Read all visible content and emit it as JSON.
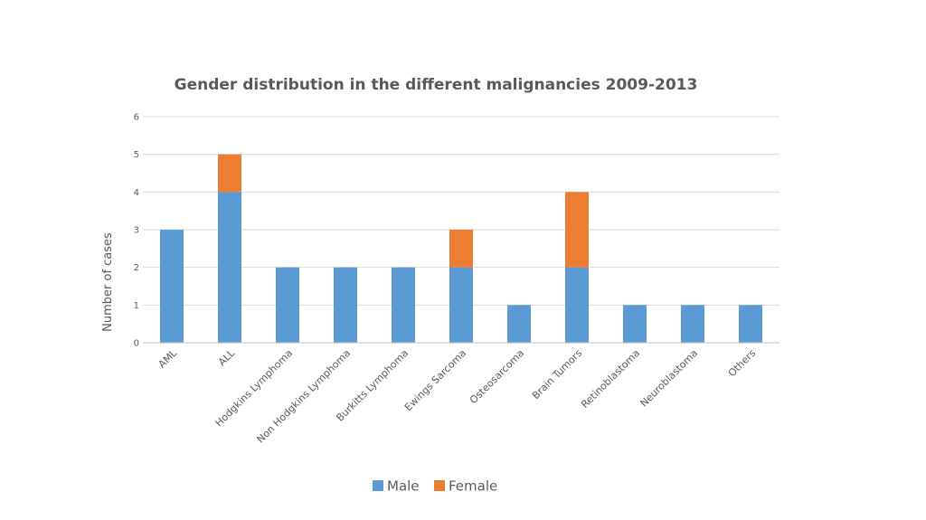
{
  "chart_data": {
    "type": "bar",
    "stacked": true,
    "title": "Gender distribution in the different malignancies 2009-2013",
    "xlabel": "",
    "ylabel": "Number of cases",
    "ylim": [
      0,
      6
    ],
    "yticks": [
      "0",
      "1",
      "2",
      "3",
      "4",
      "5",
      "6"
    ],
    "grid": true,
    "legend_position": "bottom",
    "categories": [
      "AML",
      "ALL",
      "Hodgkins Lymphoma",
      "Non Hodgkins Lymphoma",
      "Burkitts Lymphoma",
      "Ewings Sarcoma",
      "Osteosarcoma",
      "Brain Tumors",
      "Retinoblastoma",
      "Neuroblastoma",
      "Others"
    ],
    "series": [
      {
        "name": "Male",
        "color": "#5b9bd5",
        "values": [
          3,
          4,
          2,
          2,
          2,
          2,
          1,
          2,
          1,
          1,
          1
        ]
      },
      {
        "name": "Female",
        "color": "#ed7d31",
        "values": [
          0,
          1,
          0,
          0,
          0,
          1,
          0,
          2,
          0,
          0,
          0
        ]
      }
    ]
  }
}
